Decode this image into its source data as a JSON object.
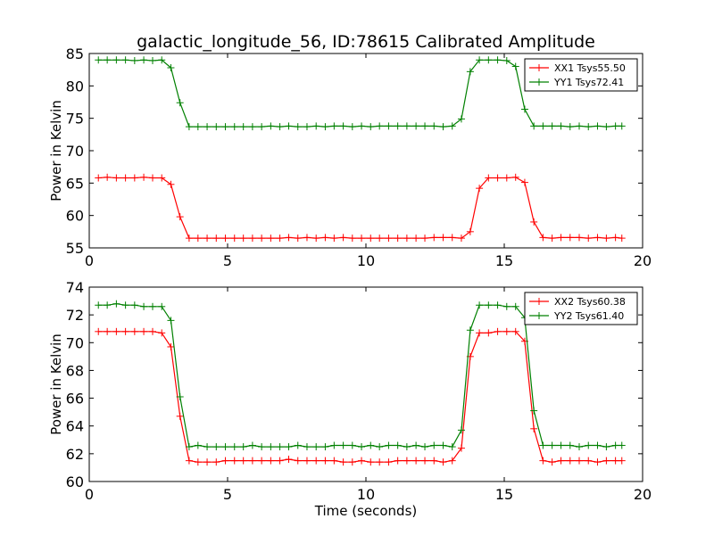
{
  "title": "galactic_longitude_56, ID:78615 Calibrated Amplitude",
  "chart_data": [
    {
      "type": "line",
      "title": "galactic_longitude_56, ID:78615 Calibrated Amplitude",
      "xlabel": "",
      "ylabel": "Power in Kelvin",
      "xlim": [
        0,
        20
      ],
      "ylim": [
        55,
        85
      ],
      "xticks": [
        "0",
        "5",
        "10",
        "15",
        "20"
      ],
      "yticks": [
        "55",
        "60",
        "65",
        "70",
        "75",
        "80",
        "85"
      ],
      "grid": false,
      "legend_position": "top-right",
      "x": [
        0.33,
        0.65,
        0.98,
        1.31,
        1.64,
        1.97,
        2.29,
        2.62,
        2.95,
        3.28,
        3.61,
        3.93,
        4.26,
        4.59,
        4.92,
        5.25,
        5.57,
        5.9,
        6.23,
        6.56,
        6.89,
        7.21,
        7.54,
        7.87,
        8.2,
        8.53,
        8.85,
        9.18,
        9.51,
        9.84,
        10.17,
        10.49,
        10.82,
        11.15,
        11.48,
        11.81,
        12.13,
        12.46,
        12.79,
        13.12,
        13.45,
        13.77,
        14.1,
        14.43,
        14.76,
        15.09,
        15.41,
        15.74,
        16.07,
        16.4,
        16.73,
        17.05,
        17.38,
        17.71,
        18.04,
        18.37,
        18.69,
        19.02,
        19.25
      ],
      "series": [
        {
          "name": "XX1 Tsys55.50",
          "color": "#ff0000",
          "values": [
            65.8,
            65.9,
            65.8,
            65.8,
            65.8,
            65.9,
            65.8,
            65.8,
            64.8,
            59.8,
            56.5,
            56.5,
            56.5,
            56.5,
            56.5,
            56.5,
            56.5,
            56.5,
            56.5,
            56.5,
            56.5,
            56.6,
            56.5,
            56.6,
            56.5,
            56.6,
            56.5,
            56.6,
            56.5,
            56.5,
            56.5,
            56.5,
            56.5,
            56.5,
            56.5,
            56.5,
            56.5,
            56.6,
            56.6,
            56.6,
            56.5,
            57.5,
            64.2,
            65.8,
            65.8,
            65.8,
            65.9,
            65.1,
            59.0,
            56.6,
            56.5,
            56.6,
            56.6,
            56.6,
            56.5,
            56.6,
            56.5,
            56.6,
            56.5
          ]
        },
        {
          "name": "YY1 Tsys72.41",
          "color": "#008000",
          "values": [
            84.0,
            84.0,
            84.0,
            84.0,
            83.9,
            84.0,
            83.9,
            84.0,
            82.8,
            77.4,
            73.7,
            73.7,
            73.7,
            73.7,
            73.7,
            73.7,
            73.7,
            73.7,
            73.7,
            73.8,
            73.7,
            73.8,
            73.7,
            73.7,
            73.8,
            73.7,
            73.8,
            73.8,
            73.7,
            73.8,
            73.7,
            73.8,
            73.8,
            73.8,
            73.8,
            73.8,
            73.8,
            73.8,
            73.7,
            73.8,
            74.9,
            82.2,
            84.0,
            84.0,
            84.0,
            83.9,
            83.0,
            76.4,
            73.8,
            73.8,
            73.8,
            73.8,
            73.7,
            73.8,
            73.7,
            73.8,
            73.7,
            73.8,
            73.8
          ]
        }
      ]
    },
    {
      "type": "line",
      "title": "",
      "xlabel": "Time (seconds)",
      "ylabel": "Power in Kelvin",
      "xlim": [
        0,
        20
      ],
      "ylim": [
        60,
        74
      ],
      "xticks": [
        "0",
        "5",
        "10",
        "15",
        "20"
      ],
      "yticks": [
        "60",
        "62",
        "64",
        "66",
        "68",
        "70",
        "72",
        "74"
      ],
      "grid": false,
      "legend_position": "top-right",
      "x": [
        0.33,
        0.65,
        0.98,
        1.31,
        1.64,
        1.97,
        2.29,
        2.62,
        2.95,
        3.28,
        3.61,
        3.93,
        4.26,
        4.59,
        4.92,
        5.25,
        5.57,
        5.9,
        6.23,
        6.56,
        6.89,
        7.21,
        7.54,
        7.87,
        8.2,
        8.53,
        8.85,
        9.18,
        9.51,
        9.84,
        10.17,
        10.49,
        10.82,
        11.15,
        11.48,
        11.81,
        12.13,
        12.46,
        12.79,
        13.12,
        13.45,
        13.77,
        14.1,
        14.43,
        14.76,
        15.09,
        15.41,
        15.74,
        16.07,
        16.4,
        16.73,
        17.05,
        17.38,
        17.71,
        18.04,
        18.37,
        18.69,
        19.02,
        19.25
      ],
      "series": [
        {
          "name": "XX2 Tsys60.38",
          "color": "#ff0000",
          "values": [
            70.8,
            70.8,
            70.8,
            70.8,
            70.8,
            70.8,
            70.8,
            70.7,
            69.7,
            64.7,
            61.5,
            61.4,
            61.4,
            61.4,
            61.5,
            61.5,
            61.5,
            61.5,
            61.5,
            61.5,
            61.5,
            61.6,
            61.5,
            61.5,
            61.5,
            61.5,
            61.5,
            61.4,
            61.4,
            61.5,
            61.4,
            61.4,
            61.4,
            61.5,
            61.5,
            61.5,
            61.5,
            61.5,
            61.4,
            61.5,
            62.4,
            69.0,
            70.7,
            70.7,
            70.8,
            70.8,
            70.8,
            70.1,
            63.8,
            61.5,
            61.4,
            61.5,
            61.5,
            61.5,
            61.5,
            61.4,
            61.5,
            61.5,
            61.5
          ]
        },
        {
          "name": "YY2 Tsys61.40",
          "color": "#008000",
          "values": [
            72.7,
            72.7,
            72.8,
            72.7,
            72.7,
            72.6,
            72.6,
            72.6,
            71.6,
            66.1,
            62.5,
            62.6,
            62.5,
            62.5,
            62.5,
            62.5,
            62.5,
            62.6,
            62.5,
            62.5,
            62.5,
            62.5,
            62.6,
            62.5,
            62.5,
            62.5,
            62.6,
            62.6,
            62.6,
            62.5,
            62.6,
            62.5,
            62.6,
            62.6,
            62.5,
            62.6,
            62.5,
            62.6,
            62.6,
            62.5,
            63.7,
            70.9,
            72.7,
            72.7,
            72.7,
            72.6,
            72.6,
            71.8,
            65.1,
            62.6,
            62.6,
            62.6,
            62.6,
            62.5,
            62.6,
            62.6,
            62.5,
            62.6,
            62.6
          ]
        }
      ]
    }
  ]
}
